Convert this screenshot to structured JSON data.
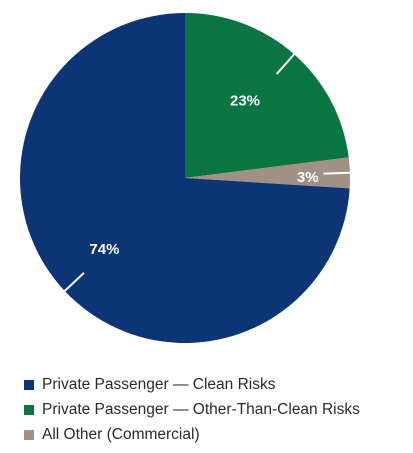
{
  "chart_data": {
    "type": "pie",
    "title": "",
    "start_angle_deg": 0,
    "direction": "clockwise",
    "slices": [
      {
        "label": "Private Passenger — Other-Than-Clean Risks",
        "value": 23,
        "display": "23%",
        "color": "#0a7443"
      },
      {
        "label": "All Other (Commercial)",
        "value": 3,
        "display": "3%",
        "color": "#a09184"
      },
      {
        "label": "Private Passenger — Clean Risks",
        "value": 74,
        "display": "74%",
        "color": "#0c3576"
      }
    ],
    "legend": {
      "placement": "bottom-left",
      "entries": [
        {
          "label": "Private Passenger — Clean Risks",
          "color": "#0c3576"
        },
        {
          "label": "Private Passenger — Other-Than-Clean Risks",
          "color": "#0a7443"
        },
        {
          "label": "All Other (Commercial)",
          "color": "#a09184"
        }
      ]
    }
  }
}
